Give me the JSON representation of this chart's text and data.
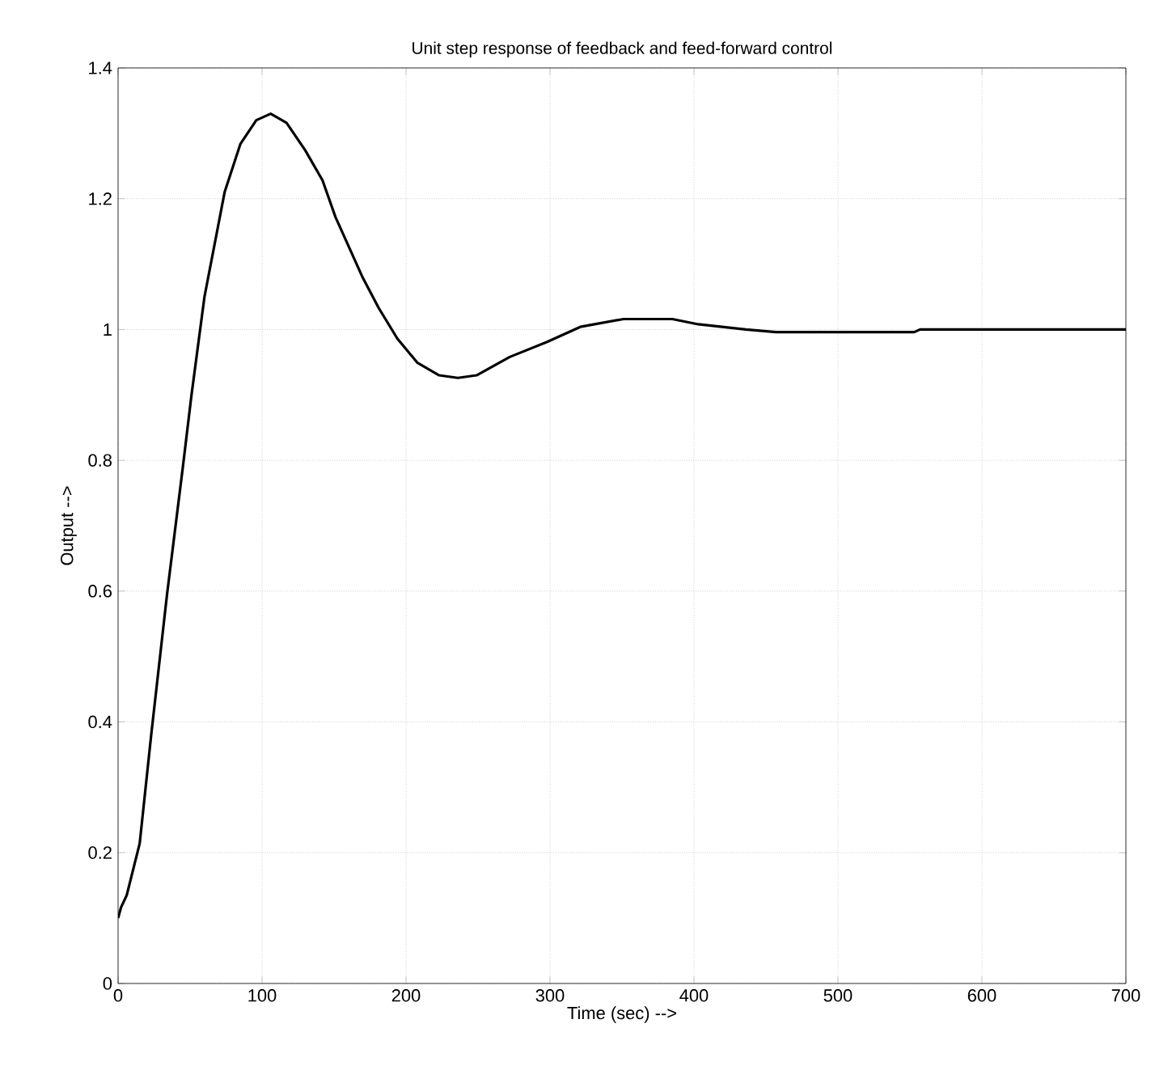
{
  "chart_data": {
    "type": "line",
    "title": "Unit step response of feedback and feed-forward control",
    "xlabel": "Time (sec) -->",
    "ylabel": "Output -->",
    "x": [
      0,
      2,
      6,
      15,
      23,
      34,
      45,
      51,
      60,
      74,
      85,
      96,
      106,
      117,
      130,
      142,
      151,
      170,
      181,
      194,
      208,
      223,
      236,
      249,
      272,
      298,
      321,
      351,
      385,
      403,
      436,
      457,
      553,
      557,
      700
    ],
    "series": [
      {
        "color": "#000000",
        "values": [
          0.1,
          0.116,
          0.135,
          0.214,
          0.38,
          0.595,
          0.79,
          0.9,
          1.05,
          1.21,
          1.284,
          1.32,
          1.33,
          1.316,
          1.274,
          1.228,
          1.172,
          1.079,
          1.033,
          0.986,
          0.949,
          0.93,
          0.926,
          0.93,
          0.958,
          0.981,
          1.004,
          1.016,
          1.016,
          1.008,
          1.0,
          0.996,
          0.996,
          1.0,
          1.0
        ]
      }
    ],
    "xlim": [
      0,
      700
    ],
    "ylim": [
      0,
      1.4
    ],
    "xticks": [
      0,
      100,
      200,
      300,
      400,
      500,
      600,
      700
    ],
    "yticks": [
      0,
      0.2,
      0.4,
      0.6,
      0.8,
      1,
      1.2,
      1.4
    ],
    "grid": true,
    "line_style": "solid",
    "marker": "none"
  }
}
